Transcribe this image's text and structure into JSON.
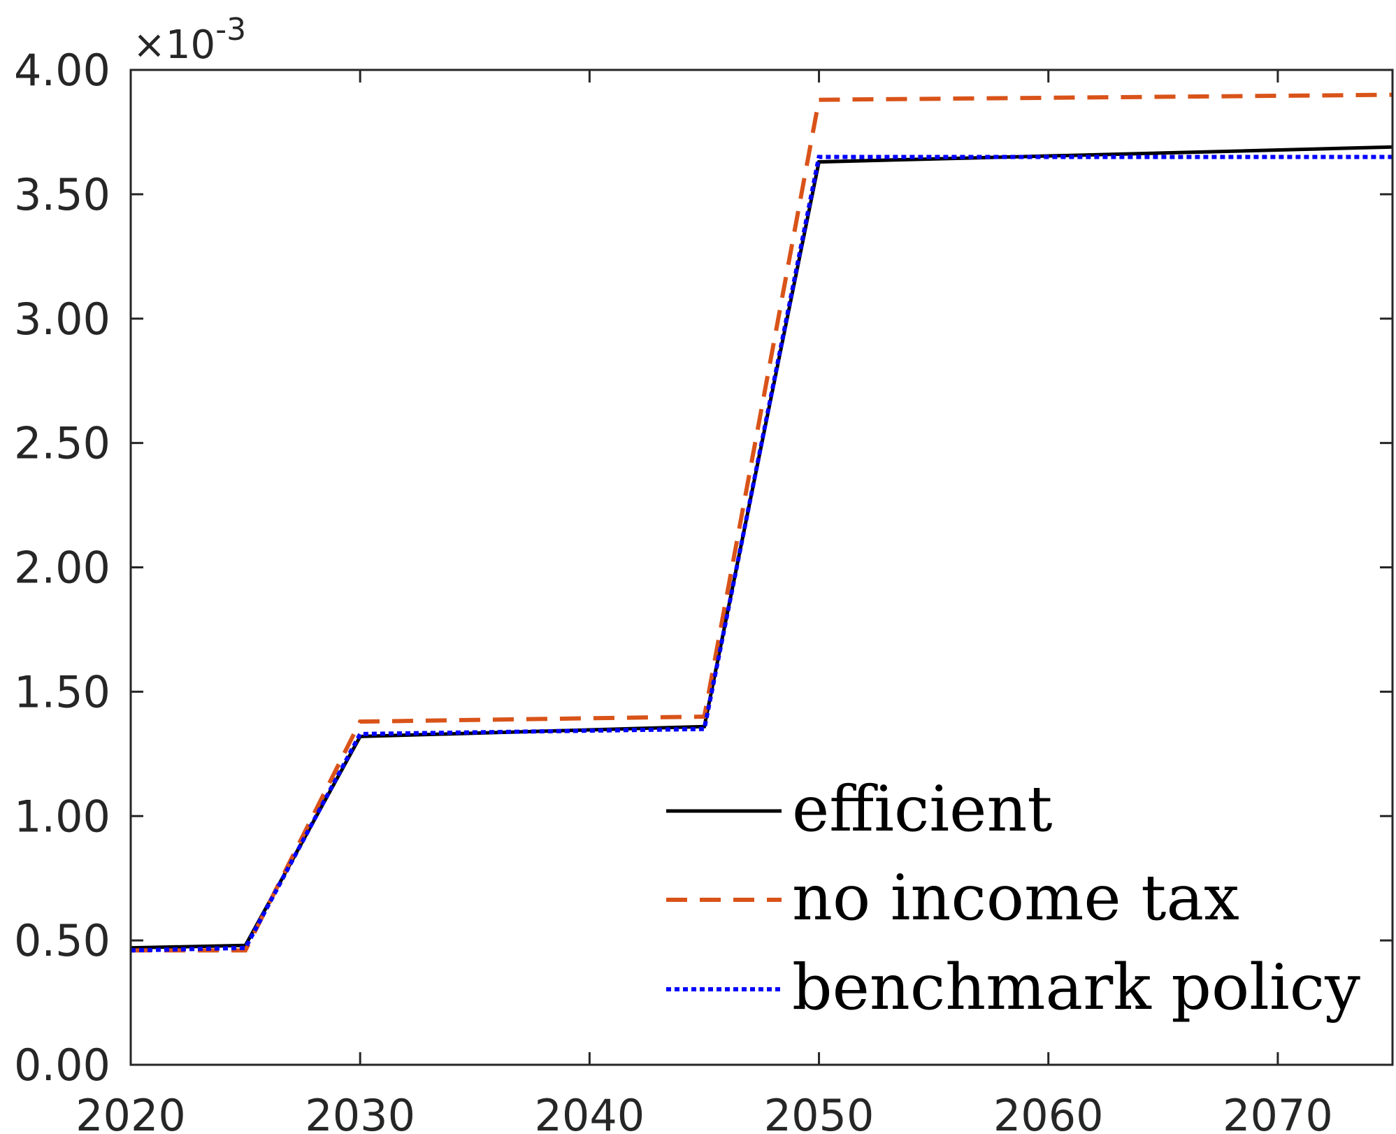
{
  "chart_data": {
    "type": "line",
    "title": "",
    "xlabel": "",
    "ylabel": "",
    "xlim": [
      2020,
      2075
    ],
    "ylim": [
      0,
      0.004
    ],
    "y_multiplier_label": {
      "base": "×10",
      "exp": "-3"
    },
    "xticks": [
      2020,
      2030,
      2040,
      2050,
      2060,
      2070
    ],
    "xtick_labels": [
      "2020",
      "2030",
      "2040",
      "2050",
      "2060",
      "2070"
    ],
    "yticks": [
      0,
      0.0005,
      0.001,
      0.0015,
      0.002,
      0.0025,
      0.003,
      0.0035,
      0.004
    ],
    "ytick_labels": [
      "0.00",
      "0.50",
      "1.00",
      "1.50",
      "2.00",
      "2.50",
      "3.00",
      "3.50",
      "4.00"
    ],
    "grid": false,
    "legend_position": "bottom-right",
    "series": [
      {
        "name": "efficient",
        "color": "#000000",
        "style": "solid",
        "x": [
          2020,
          2025,
          2030,
          2045,
          2050,
          2075
        ],
        "y": [
          0.00047,
          0.00048,
          0.00132,
          0.00136,
          0.00363,
          0.00369
        ]
      },
      {
        "name": "no income tax",
        "color": "#D95319",
        "style": "dashed",
        "x": [
          2020,
          2025,
          2030,
          2045,
          2050,
          2075
        ],
        "y": [
          0.00046,
          0.00046,
          0.00138,
          0.0014,
          0.00388,
          0.0039
        ]
      },
      {
        "name": "benchmark policy",
        "color": "#0000FF",
        "style": "dotted",
        "x": [
          2020,
          2025,
          2030,
          2045,
          2050,
          2075
        ],
        "y": [
          0.00046,
          0.00047,
          0.00133,
          0.00135,
          0.00365,
          0.00365
        ]
      }
    ]
  }
}
